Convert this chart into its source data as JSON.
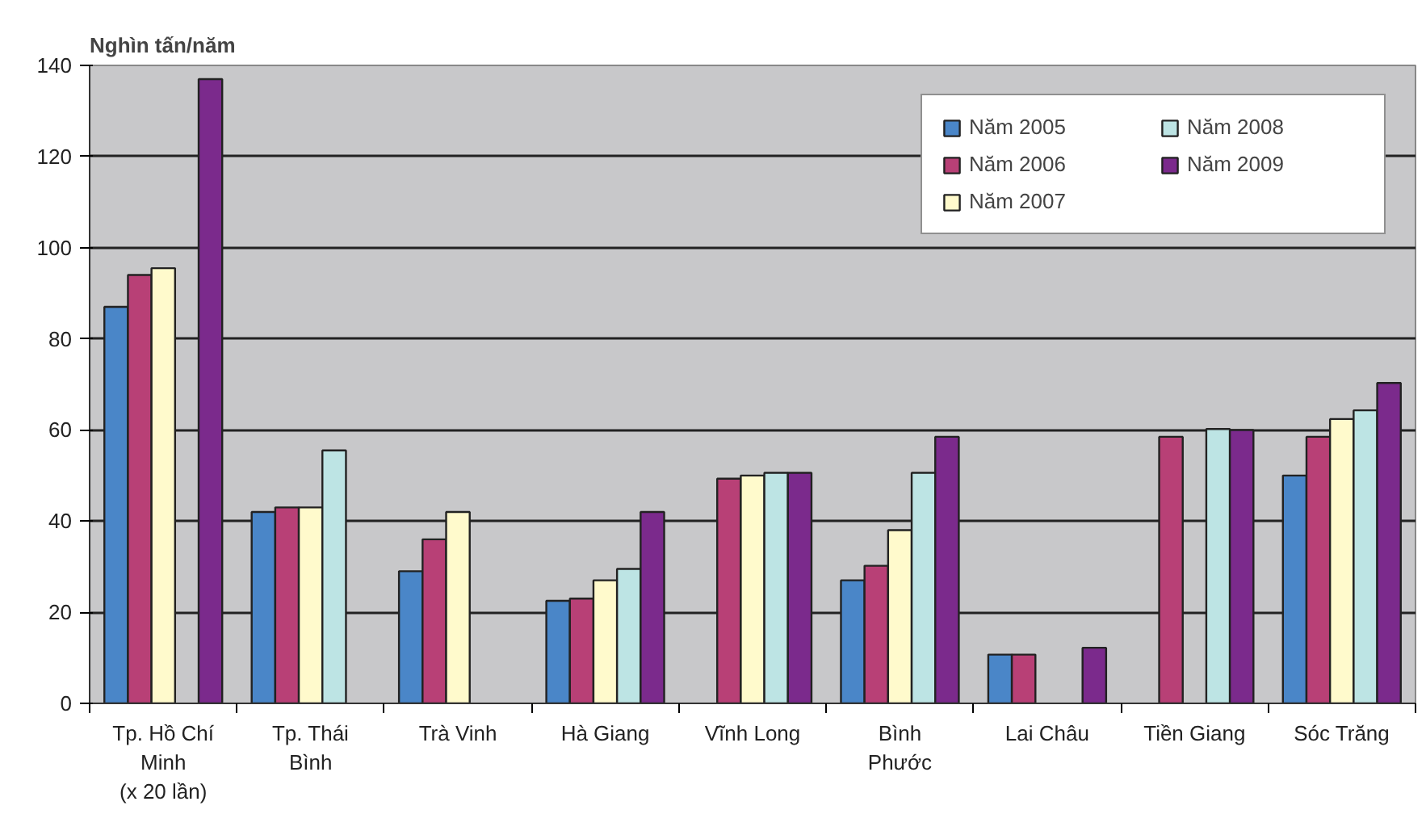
{
  "chart_data": {
    "type": "bar",
    "ylabel": "Nghìn tấn/năm",
    "categories": [
      "Tp. Hồ Chí\nMinh\n(x 20 lần)",
      "Tp. Thái\nBình",
      "Trà Vinh",
      "Hà Giang",
      "Vĩnh Long",
      "Bình\nPhước",
      "Lai Châu",
      "Tiền Giang",
      "Sóc Trăng"
    ],
    "series": [
      {
        "name": "Năm 2005",
        "color": "#4a86c8",
        "values": [
          87,
          42,
          29,
          22.5,
          null,
          27,
          10.7,
          null,
          50
        ]
      },
      {
        "name": "Năm 2006",
        "color": "#b84076",
        "values": [
          94,
          43,
          36,
          23,
          49.3,
          30.2,
          10.7,
          58.5,
          58.5
        ]
      },
      {
        "name": "Năm 2007",
        "color": "#fffacc",
        "values": [
          95.5,
          43,
          42,
          27,
          50,
          38,
          null,
          null,
          62.4
        ]
      },
      {
        "name": "Năm 2008",
        "color": "#bde4e4",
        "values": [
          null,
          55.5,
          null,
          29.5,
          50.6,
          50.6,
          null,
          60.2,
          64.3
        ]
      },
      {
        "name": "Năm 2009",
        "color": "#7b2a8c",
        "values": [
          137,
          null,
          null,
          42,
          50.6,
          58.5,
          12.2,
          60,
          70.3
        ]
      }
    ],
    "ylim": [
      0,
      140
    ],
    "yticks": [
      0,
      20,
      40,
      60,
      80,
      100,
      120,
      140
    ],
    "grid": "y",
    "legend": "top right"
  }
}
